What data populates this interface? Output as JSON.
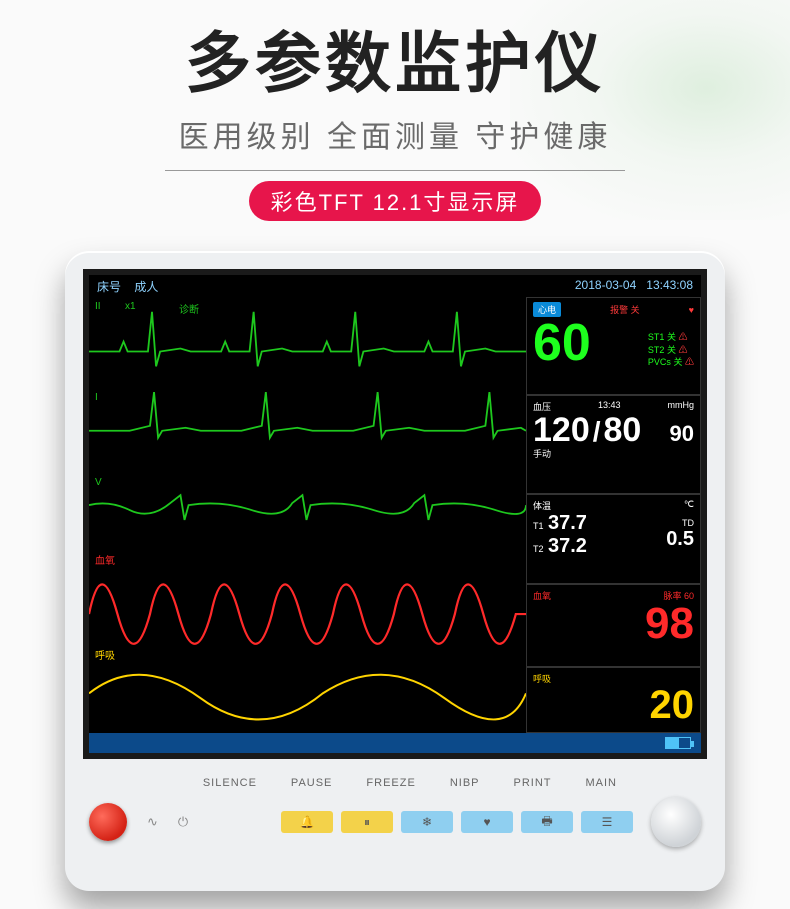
{
  "header": {
    "title": "多参数监护仪",
    "title_color": "#222222",
    "subtitle": "医用级别 全面测量 守护健康",
    "subtitle_color": "#6a6a6a",
    "badge_text": "彩色TFT  12.1寸显示屏",
    "badge_bg": "#e7154b",
    "badge_fg": "#ffffff"
  },
  "screen": {
    "bg": "#000000",
    "top_bar": {
      "left1": "床号",
      "left2": "成人",
      "right_date": "2018-03-04",
      "right_time": "13:43:08",
      "text_color": "#8fd3ff"
    },
    "waveforms": {
      "ecg1": {
        "label_left": "II",
        "label_scale": "x1",
        "label_mode": "诊断",
        "color": "#1ec81e"
      },
      "ecg2": {
        "label_left": "I",
        "color": "#1ec81e"
      },
      "ecg3": {
        "label_left": "V",
        "color": "#1ec81e"
      },
      "spo2": {
        "label_left": "血氧",
        "color": "#ff2a2a"
      },
      "resp": {
        "label_left": "呼吸",
        "color": "#ffd400"
      }
    },
    "panels": {
      "hr": {
        "badge": "心电",
        "badge_bg": "#0a8ad8",
        "badge_fg": "#ffffff",
        "alarm_label": "报警",
        "alarm_value": "关",
        "alarm_color": "#ff3a3a",
        "value": "60",
        "value_color": "#1eff1e",
        "st1_label": "ST1",
        "st1_v": "关",
        "st2_label": "ST2",
        "st2_v": "关",
        "pvc_label": "PVCs",
        "pvc_v": "关",
        "sub_color": "#1eff1e",
        "warn_char": "⚠"
      },
      "bp": {
        "label": "血压",
        "time": "13:43",
        "unit": "mmHg",
        "sys": "120",
        "sep": "/",
        "dia": "80",
        "mean": "90",
        "mode_label": "手动",
        "text_color": "#ffffff"
      },
      "temp": {
        "label": "体温",
        "unit": "℃",
        "t1_label": "T1",
        "t1": "37.7",
        "t2_label": "T2",
        "t2": "37.2",
        "td_label": "TD",
        "td": "0.5",
        "text_color": "#ffffff"
      },
      "spo2": {
        "label": "血氧",
        "pr_label": "脉率",
        "pr": "60",
        "value": "98",
        "value_color": "#ff2a2a",
        "label_color": "#ff2a2a"
      },
      "resp": {
        "label": "呼吸",
        "value": "20",
        "value_color": "#ffd400",
        "label_color": "#ffd400"
      }
    },
    "bottom_bar_bg": "#0c4a8a",
    "battery_pct": 55
  },
  "phys": {
    "labels": [
      "SILENCE",
      "PAUSE",
      "FREEZE",
      "NIBP",
      "PRINT",
      "MAIN"
    ],
    "symbols": {
      "ac": "∿",
      "power": "⏻"
    },
    "soft_btns": [
      {
        "icon": "🔔",
        "bg": "#f3d24a"
      },
      {
        "icon": "⏸",
        "bg": "#f3d24a"
      },
      {
        "icon": "❄",
        "bg": "#8fcff0"
      },
      {
        "icon": "♥",
        "bg": "#8fcff0"
      },
      {
        "icon": "🖶",
        "bg": "#8fcff0"
      },
      {
        "icon": "☰",
        "bg": "#8fcff0"
      }
    ]
  },
  "colors": {
    "device_body": "#eef0f2"
  }
}
